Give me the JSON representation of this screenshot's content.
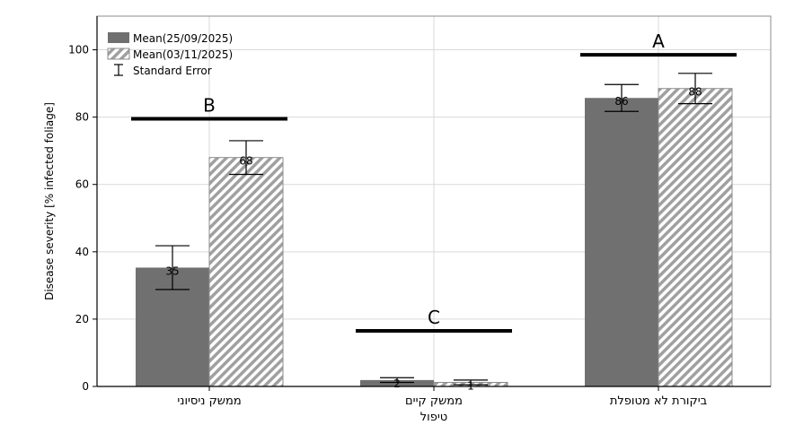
{
  "chart_data": {
    "type": "bar",
    "ylabel": "Disease severity [% infected foliage]",
    "xlabel": "טיפול",
    "ylim": [
      0,
      110
    ],
    "yticks": [
      0,
      20,
      40,
      60,
      80,
      100
    ],
    "grid": true,
    "legend_position": "top-left",
    "categories": [
      "ממשק ניסיוני",
      "ממשק קיים",
      "ביקורת לא מטופלת"
    ],
    "series": [
      {
        "name": "Mean(25/09/2025)",
        "color": "#707070",
        "pattern": "solid",
        "values": [
          35.3,
          1.9,
          85.7
        ],
        "errors": [
          6.5,
          0.7,
          4.0
        ],
        "labels": [
          "35",
          "2",
          "86"
        ]
      },
      {
        "name": "Mean(03/11/2025)",
        "color": "#a0a0a0",
        "pattern": "hatched",
        "values": [
          68.0,
          1.2,
          88.5
        ],
        "errors": [
          5.0,
          0.7,
          4.5
        ],
        "labels": [
          "68",
          "1",
          "88"
        ]
      }
    ],
    "error_legend": "Standard Error",
    "group_letters": [
      {
        "letter": "B",
        "line_y": 79.5
      },
      {
        "letter": "C",
        "line_y": 16.5
      },
      {
        "letter": "A",
        "line_y": 98.5
      }
    ]
  }
}
